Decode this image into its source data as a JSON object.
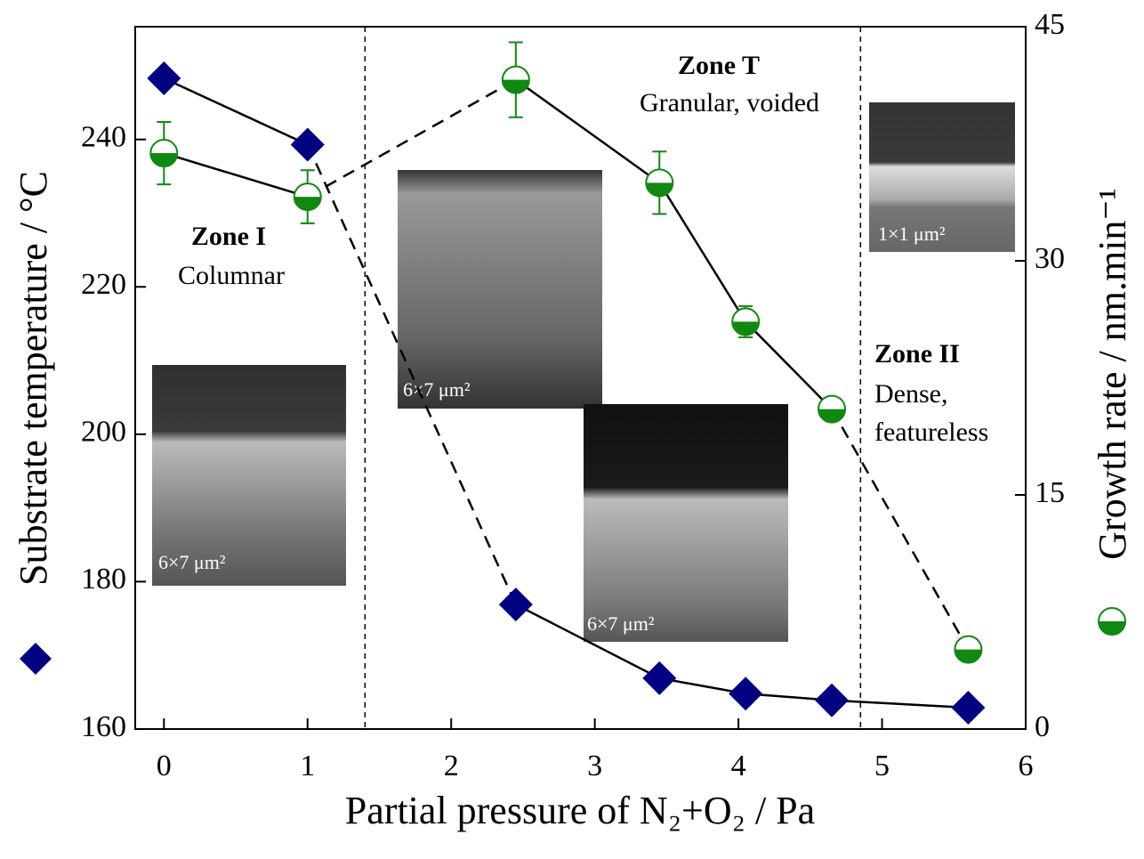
{
  "chart_data": {
    "type": "scatter",
    "xlabel": "Partial pressure of N₂+O₂ / Pa",
    "ylabel": "Substrate temperature / °C",
    "y2label": "Growth rate / nm.min⁻¹",
    "xlim": [
      -0.2,
      6
    ],
    "xticks": [
      0,
      1,
      2,
      3,
      4,
      5,
      6
    ],
    "ylim": [
      160,
      255.3
    ],
    "yticks": [
      160,
      180,
      200,
      220,
      240
    ],
    "y2lim": [
      0,
      45
    ],
    "y2ticks": [
      0,
      15,
      30,
      45
    ],
    "zone_boundaries": [
      1.4,
      4.85
    ],
    "series": [
      {
        "color": "#000080",
        "marker": "diamond",
        "x": [
          0,
          1.0,
          2.45,
          3.45,
          4.05,
          4.65,
          5.6
        ],
        "values": [
          248.3,
          239.3,
          176.9,
          166.9,
          164.8,
          163.9,
          162.9
        ]
      },
      {
        "color": "#118811",
        "marker": "half-circle",
        "axis": "y2",
        "x": [
          0,
          1.0,
          2.45,
          3.45,
          4.05,
          4.65,
          5.6
        ],
        "values": [
          36.9,
          34.1,
          41.6,
          35.0,
          26.1,
          20.5,
          5.1
        ],
        "errors": [
          2.0,
          1.7,
          2.4,
          2.0,
          1.0,
          0.6,
          0.3
        ]
      }
    ],
    "annotations": [
      "Zone I",
      "Columnar",
      "Zone T",
      "Granular, voided",
      "Zone II",
      "Dense,",
      "featureless"
    ],
    "insets": [
      "6×7 μm²",
      "6×7 μm²",
      "6×7 μm²",
      "1×1 μm²"
    ]
  }
}
